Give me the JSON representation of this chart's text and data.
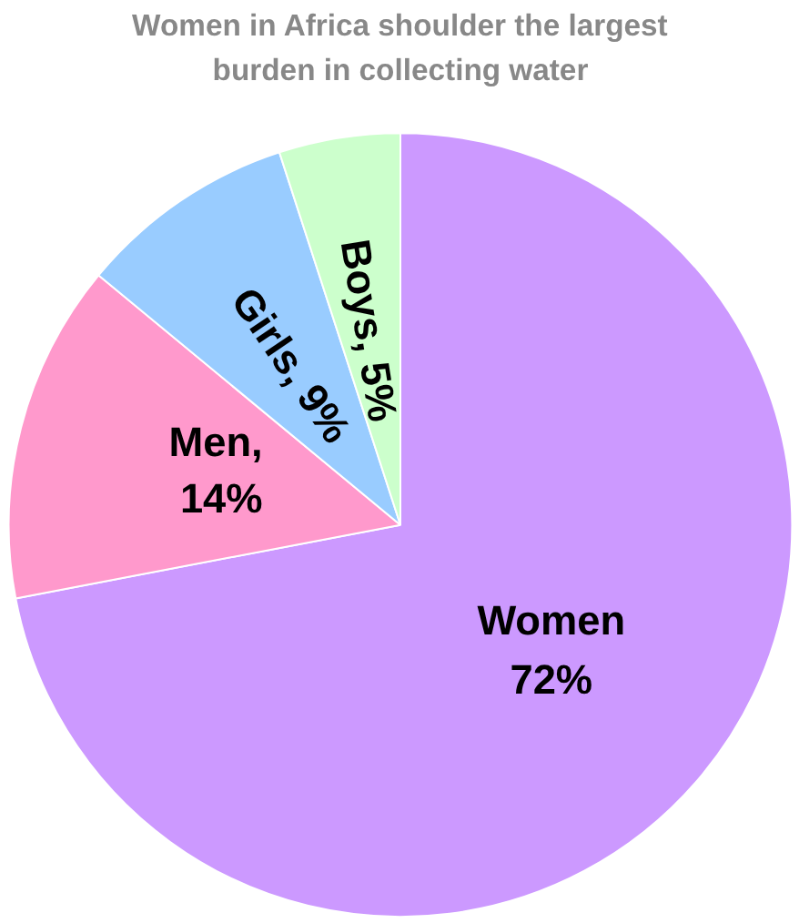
{
  "chart_data": {
    "type": "pie",
    "title": "Women in Africa shoulder the largest burden in collecting water",
    "categories": [
      "Women",
      "Men",
      "Girls",
      "Boys"
    ],
    "values": [
      72,
      14,
      9,
      5
    ],
    "colors": [
      "#cc99ff",
      "#ff99cc",
      "#99ccff",
      "#ccffcc"
    ],
    "value_labels": [
      "72%",
      ",\n14%",
      ", 9%",
      ", 5%"
    ],
    "legend": false
  }
}
